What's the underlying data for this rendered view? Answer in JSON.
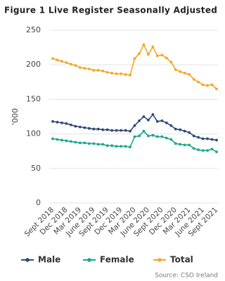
{
  "chart_data": {
    "type": "line",
    "title": "Figure 1 Live Register Seasonally Adjusted",
    "y_label": "'000",
    "source": "Source: CSO Ireland",
    "categories": [
      "Sept 2018",
      null,
      null,
      "Dec 2018",
      null,
      null,
      "Mar 2019",
      null,
      null,
      "June 2019",
      null,
      null,
      "Sept 2019",
      null,
      null,
      "Dec 2019",
      null,
      null,
      "Mar 2020",
      null,
      null,
      "June 2020",
      null,
      null,
      "Sept 2020",
      null,
      null,
      "Dec 2020",
      null,
      null,
      "Mar 2021",
      null,
      null,
      "June 2021",
      null,
      null,
      "Sept 2021"
    ],
    "series": [
      {
        "name": "Male",
        "color": "#2e4a7a",
        "values": [
          118,
          117,
          116,
          115,
          113,
          111,
          110,
          109,
          108,
          107,
          107,
          106,
          106,
          105,
          105,
          105,
          105,
          104,
          112,
          119,
          125,
          120,
          128,
          118,
          119,
          116,
          112,
          107,
          106,
          104,
          102,
          97,
          95,
          93,
          93,
          92,
          91
        ]
      },
      {
        "name": "Female",
        "color": "#1aa88e",
        "values": [
          93,
          92,
          91,
          90,
          89,
          88,
          87,
          87,
          86,
          86,
          85,
          85,
          83,
          83,
          82,
          82,
          82,
          81,
          96,
          97,
          104,
          97,
          98,
          96,
          96,
          94,
          92,
          86,
          85,
          84,
          84,
          79,
          77,
          76,
          76,
          78,
          74
        ]
      },
      {
        "name": "Total",
        "color": "#f5a623",
        "values": [
          209,
          207,
          205,
          203,
          201,
          199,
          196,
          195,
          194,
          192,
          192,
          191,
          189,
          188,
          187,
          187,
          186,
          185,
          209,
          216,
          229,
          215,
          226,
          213,
          214,
          210,
          204,
          193,
          190,
          188,
          186,
          179,
          175,
          171,
          170,
          171,
          165
        ]
      }
    ],
    "ylim": [
      0,
      250
    ],
    "yticks": [
      0,
      50,
      100,
      150,
      200,
      250
    ],
    "grid": true
  }
}
